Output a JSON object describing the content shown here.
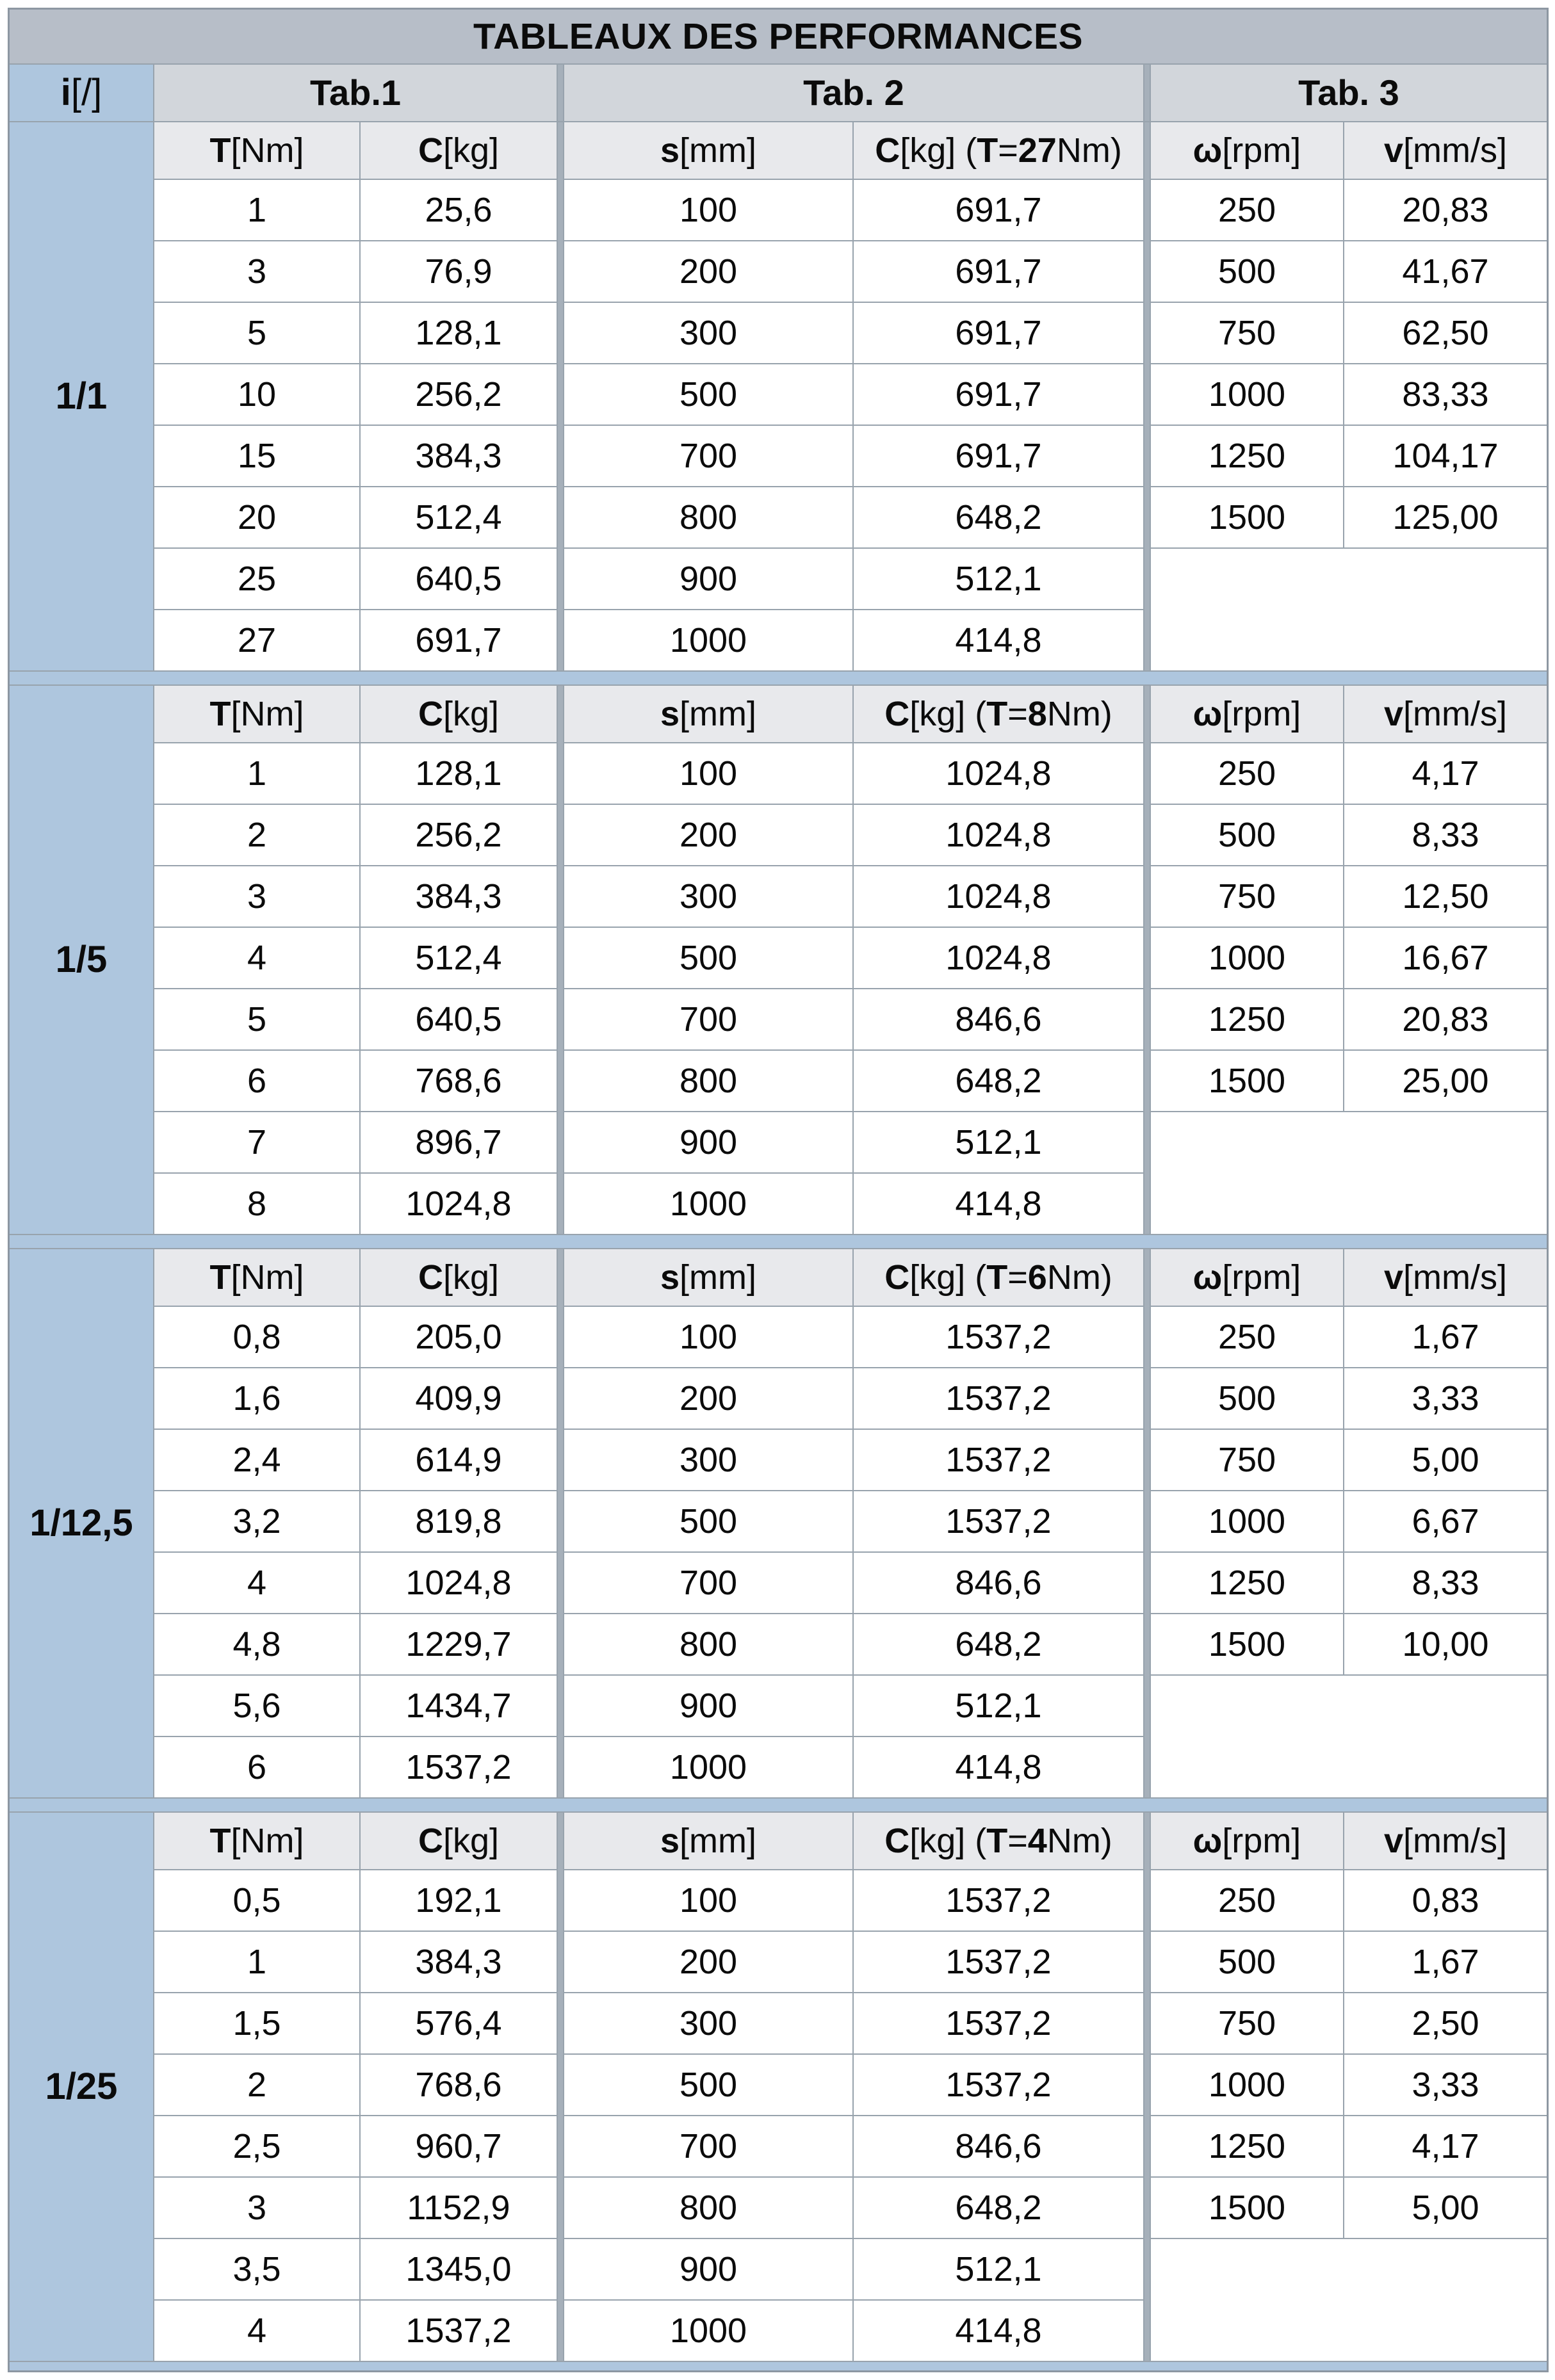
{
  "title": "TABLEAUX DES PERFORMANCES",
  "corner_header": [
    [
      "i",
      true
    ],
    [
      " [/]",
      false
    ]
  ],
  "tab_headers": [
    "Tab.1",
    "Tab. 2",
    "Tab. 3"
  ],
  "columns": {
    "t": [
      [
        "T",
        true
      ],
      [
        " [Nm]",
        false
      ]
    ],
    "c": [
      [
        "C",
        true
      ],
      [
        " [kg]",
        false
      ]
    ],
    "s": [
      [
        "s",
        true
      ],
      [
        " [mm]",
        false
      ]
    ],
    "omega": [
      [
        "ω",
        true
      ],
      [
        " [rpm]",
        false
      ]
    ],
    "v": [
      [
        "v",
        true
      ],
      [
        " [mm/s]",
        false
      ]
    ]
  },
  "sections": [
    {
      "ratio": "1/1",
      "c2_header": [
        [
          "C",
          true
        ],
        [
          " [kg] (",
          false
        ],
        [
          "T",
          true
        ],
        [
          "=",
          false
        ],
        [
          "27",
          true
        ],
        [
          " Nm)",
          false
        ]
      ],
      "tab1": {
        "t": [
          "1",
          "3",
          "5",
          "10",
          "15",
          "20",
          "25",
          "27"
        ],
        "c": [
          "25,6",
          "76,9",
          "128,1",
          "256,2",
          "384,3",
          "512,4",
          "640,5",
          "691,7"
        ]
      },
      "tab2": {
        "s": [
          "100",
          "200",
          "300",
          "500",
          "700",
          "800",
          "900",
          "1000"
        ],
        "c": [
          "691,7",
          "691,7",
          "691,7",
          "691,7",
          "691,7",
          "648,2",
          "512,1",
          "414,8"
        ]
      },
      "tab3": {
        "omega": [
          "250",
          "500",
          "750",
          "1000",
          "1250",
          "1500"
        ],
        "v": [
          "20,83",
          "41,67",
          "62,50",
          "83,33",
          "104,17",
          "125,00"
        ]
      }
    },
    {
      "ratio": "1/5",
      "c2_header": [
        [
          "C",
          true
        ],
        [
          " [kg] (",
          false
        ],
        [
          "T",
          true
        ],
        [
          "=",
          false
        ],
        [
          "8",
          true
        ],
        [
          " Nm)",
          false
        ]
      ],
      "tab1": {
        "t": [
          "1",
          "2",
          "3",
          "4",
          "5",
          "6",
          "7",
          "8"
        ],
        "c": [
          "128,1",
          "256,2",
          "384,3",
          "512,4",
          "640,5",
          "768,6",
          "896,7",
          "1024,8"
        ]
      },
      "tab2": {
        "s": [
          "100",
          "200",
          "300",
          "500",
          "700",
          "800",
          "900",
          "1000"
        ],
        "c": [
          "1024,8",
          "1024,8",
          "1024,8",
          "1024,8",
          "846,6",
          "648,2",
          "512,1",
          "414,8"
        ]
      },
      "tab3": {
        "omega": [
          "250",
          "500",
          "750",
          "1000",
          "1250",
          "1500"
        ],
        "v": [
          "4,17",
          "8,33",
          "12,50",
          "16,67",
          "20,83",
          "25,00"
        ]
      }
    },
    {
      "ratio": "1/12,5",
      "c2_header": [
        [
          "C",
          true
        ],
        [
          " [kg] (",
          false
        ],
        [
          "T",
          true
        ],
        [
          "=",
          false
        ],
        [
          "6",
          true
        ],
        [
          " Nm)",
          false
        ]
      ],
      "tab1": {
        "t": [
          "0,8",
          "1,6",
          "2,4",
          "3,2",
          "4",
          "4,8",
          "5,6",
          "6"
        ],
        "c": [
          "205,0",
          "409,9",
          "614,9",
          "819,8",
          "1024,8",
          "1229,7",
          "1434,7",
          "1537,2"
        ]
      },
      "tab2": {
        "s": [
          "100",
          "200",
          "300",
          "500",
          "700",
          "800",
          "900",
          "1000"
        ],
        "c": [
          "1537,2",
          "1537,2",
          "1537,2",
          "1537,2",
          "846,6",
          "648,2",
          "512,1",
          "414,8"
        ]
      },
      "tab3": {
        "omega": [
          "250",
          "500",
          "750",
          "1000",
          "1250",
          "1500"
        ],
        "v": [
          "1,67",
          "3,33",
          "5,00",
          "6,67",
          "8,33",
          "10,00"
        ]
      }
    },
    {
      "ratio": "1/25",
      "c2_header": [
        [
          "C",
          true
        ],
        [
          " [kg] (",
          false
        ],
        [
          "T",
          true
        ],
        [
          "=",
          false
        ],
        [
          "4",
          true
        ],
        [
          " Nm)",
          false
        ]
      ],
      "tab1": {
        "t": [
          "0,5",
          "1",
          "1,5",
          "2",
          "2,5",
          "3",
          "3,5",
          "4"
        ],
        "c": [
          "192,1",
          "384,3",
          "576,4",
          "768,6",
          "960,7",
          "1152,9",
          "1345,0",
          "1537,2"
        ]
      },
      "tab2": {
        "s": [
          "100",
          "200",
          "300",
          "500",
          "700",
          "800",
          "900",
          "1000"
        ],
        "c": [
          "1537,2",
          "1537,2",
          "1537,2",
          "1537,2",
          "846,6",
          "648,2",
          "512,1",
          "414,8"
        ]
      },
      "tab3": {
        "omega": [
          "250",
          "500",
          "750",
          "1000",
          "1250",
          "1500"
        ],
        "v": [
          "0,83",
          "1,67",
          "2,50",
          "3,33",
          "4,17",
          "5,00"
        ]
      }
    }
  ]
}
